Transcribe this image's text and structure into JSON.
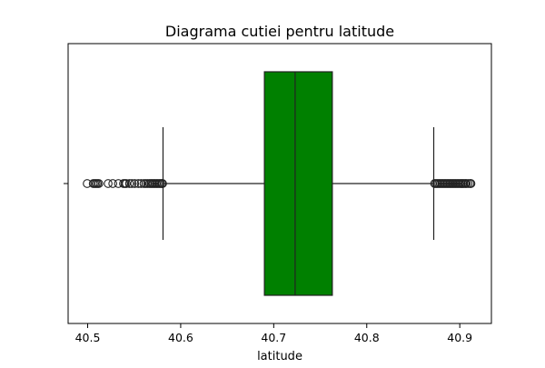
{
  "chart_data": {
    "type": "box",
    "title": "Diagrama cutiei pentru latitude",
    "xlabel": "latitude",
    "ylabel": "",
    "orientation": "horizontal",
    "xlim": [
      40.479,
      40.934
    ],
    "ticks": [
      {
        "value": 40.5,
        "label": "40.5"
      },
      {
        "value": 40.6,
        "label": "40.6"
      },
      {
        "value": 40.7,
        "label": "40.7"
      },
      {
        "value": 40.8,
        "label": "40.8"
      },
      {
        "value": 40.9,
        "label": "40.9"
      }
    ],
    "grid": false,
    "box": {
      "color": "#008000",
      "whisker_low": 40.581,
      "q1": 40.69,
      "median": 40.723,
      "q3": 40.763,
      "whisker_high": 40.872
    },
    "outliers": [
      40.4995,
      40.506,
      40.5075,
      40.509,
      40.5105,
      40.512,
      40.522,
      40.527,
      40.533,
      40.5385,
      40.54,
      40.5415,
      40.545,
      40.5475,
      40.5505,
      40.5545,
      40.5575,
      40.5605,
      40.5625,
      40.5645,
      40.5665,
      40.568,
      40.5695,
      40.571,
      40.5725,
      40.574,
      40.5755,
      40.577,
      40.5785,
      40.58,
      40.5805,
      40.873,
      40.8745,
      40.876,
      40.8775,
      40.879,
      40.8805,
      40.882,
      40.8835,
      40.885,
      40.8865,
      40.888,
      40.8895,
      40.891,
      40.8925,
      40.894,
      40.8955,
      40.897,
      40.8985,
      40.9,
      40.9015,
      40.903,
      40.9045,
      40.906,
      40.907,
      40.909,
      40.911,
      40.912
    ]
  }
}
